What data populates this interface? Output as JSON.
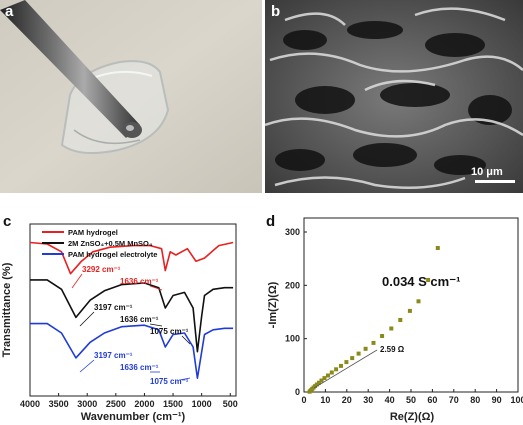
{
  "panels": {
    "a": {
      "label": "a"
    },
    "b": {
      "label": "b",
      "scale_bar": "10 μm"
    },
    "c": {
      "label": "c",
      "legend": [
        "PAM hydrogel",
        "2M ZnSO₄+0.5M MnSO₄",
        "PAM hydrogel electrolyte"
      ],
      "annotations": {
        "red_1": "3292 cm⁻¹",
        "red_2": "1636 cm⁻¹",
        "black_1": "3197 cm⁻¹",
        "black_2": "1636 cm⁻¹",
        "black_3": "1075 cm⁻¹",
        "blue_1": "3197 cm⁻¹",
        "blue_2": "1636 cm⁻¹",
        "blue_3": "1075 cm⁻¹"
      }
    },
    "d": {
      "label": "d",
      "conductivity": "0.034 S cm⁻¹",
      "intercept": "2.59 Ω"
    }
  },
  "colors": {
    "red": "#e8201f",
    "black": "#111111",
    "blue": "#1f3bd8",
    "olive": "#8a8a1a"
  },
  "chart_data": [
    {
      "type": "line",
      "xlabel": "Wavenumber (cm⁻¹)",
      "ylabel": "Transmittance (%)",
      "xlim": [
        4000,
        400
      ],
      "xticks": [
        "4000",
        "3500",
        "3000",
        "2500",
        "2000",
        "1500",
        "1000",
        "500"
      ],
      "series": [
        {
          "name": "PAM hydrogel",
          "color": "#e8201f",
          "x": [
            4000,
            3700,
            3450,
            3292,
            3100,
            2900,
            2600,
            2200,
            1900,
            1700,
            1636,
            1550,
            1450,
            1250,
            1100,
            950,
            700,
            450
          ],
          "y": [
            92,
            91,
            86,
            72,
            80,
            86,
            89,
            90,
            90,
            88,
            74,
            86,
            84,
            88,
            80,
            82,
            90,
            92
          ]
        },
        {
          "name": "2M ZnSO₄+0.5M MnSO₄",
          "color": "#111111",
          "x": [
            4000,
            3700,
            3450,
            3197,
            2950,
            2700,
            2400,
            2000,
            1750,
            1636,
            1500,
            1300,
            1150,
            1075,
            1000,
            950,
            800,
            600,
            450
          ],
          "y": [
            68,
            68,
            62,
            44,
            55,
            61,
            65,
            66,
            63,
            50,
            58,
            60,
            50,
            22,
            45,
            58,
            62,
            63,
            63
          ]
        },
        {
          "name": "PAM hydrogel electrolyte",
          "color": "#1f3bd8",
          "x": [
            4000,
            3700,
            3450,
            3197,
            2950,
            2700,
            2400,
            2000,
            1750,
            1636,
            1500,
            1300,
            1150,
            1075,
            1000,
            950,
            800,
            600,
            450
          ],
          "y": [
            40,
            40,
            34,
            18,
            28,
            34,
            38,
            39,
            36,
            25,
            33,
            34,
            25,
            5,
            22,
            33,
            36,
            37,
            37
          ]
        }
      ]
    },
    {
      "type": "scatter",
      "xlabel": "Re(Z)(Ω)",
      "ylabel": "-Im(Z)(Ω)",
      "xlim": [
        0,
        100
      ],
      "ylim": [
        0,
        300
      ],
      "xticks": [
        "0",
        "10",
        "20",
        "30",
        "40",
        "50",
        "60",
        "70",
        "80",
        "90",
        "100"
      ],
      "yticks": [
        "0",
        "100",
        "200",
        "300"
      ],
      "series": [
        {
          "name": "",
          "color": "#8a8a1a",
          "x": [
            2.6,
            3.0,
            3.4,
            3.9,
            4.5,
            5.2,
            6.0,
            7.0,
            8.2,
            9.6,
            11.2,
            13.0,
            15.0,
            17.3,
            19.8,
            22.5,
            25.5,
            28.8,
            32.5,
            36.5,
            40.8,
            45.0,
            49.5,
            53.5,
            58.0,
            62.5
          ],
          "y": [
            0.5,
            2,
            4,
            6,
            8.5,
            11,
            14,
            17.5,
            21.5,
            26,
            31,
            36.5,
            42.5,
            49,
            56,
            63.5,
            72,
            81,
            92,
            105,
            119,
            135,
            152,
            170,
            210,
            270
          ]
        }
      ]
    }
  ]
}
